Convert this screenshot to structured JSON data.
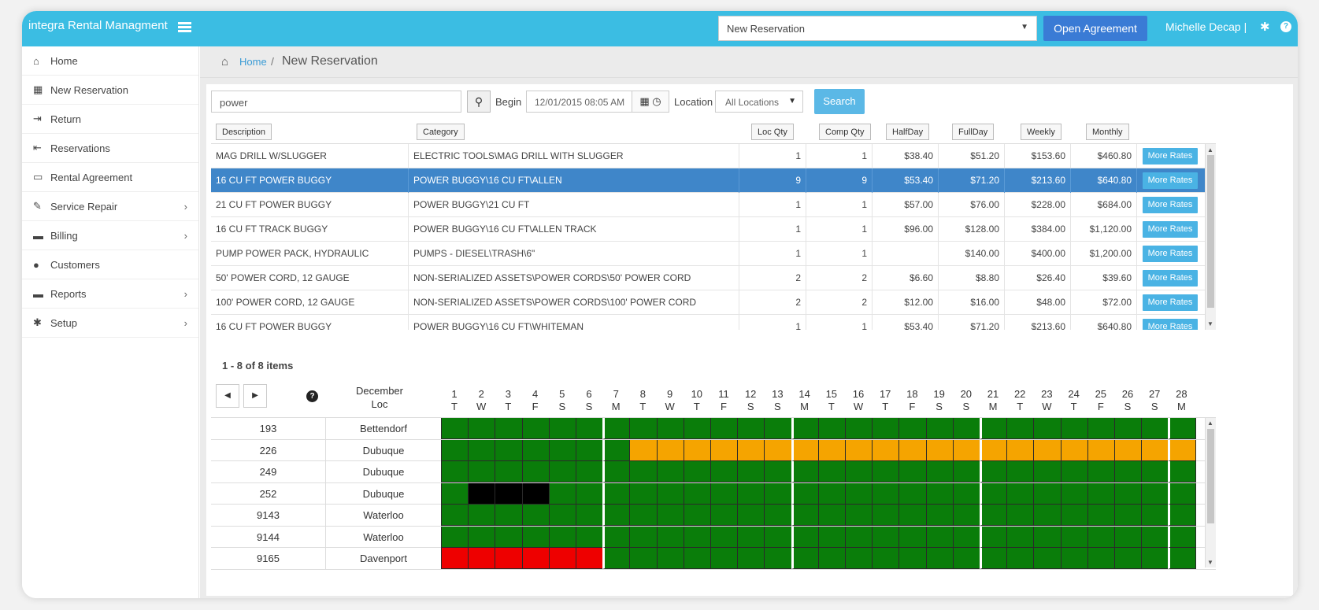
{
  "app": {
    "title": "integra Rental Managment",
    "reservation_select": "New Reservation",
    "open_agreement_label": "Open Agreement",
    "user_name": "Michelle Decap |"
  },
  "sidebar": {
    "items": [
      {
        "label": "Home",
        "icon": "home-icon",
        "has_submenu": false
      },
      {
        "label": "New Reservation",
        "icon": "calendar-icon",
        "has_submenu": false
      },
      {
        "label": "Return",
        "icon": "sign-in-icon",
        "has_submenu": false
      },
      {
        "label": "Reservations",
        "icon": "sign-out-icon",
        "has_submenu": false
      },
      {
        "label": "Rental Agreement",
        "icon": "folder-open-icon",
        "has_submenu": false
      },
      {
        "label": "Service Repair",
        "icon": "wrench-icon",
        "has_submenu": true
      },
      {
        "label": "Billing",
        "icon": "credit-card-icon",
        "has_submenu": true
      },
      {
        "label": "Customers",
        "icon": "user-icon",
        "has_submenu": false
      },
      {
        "label": "Reports",
        "icon": "credit-card-icon",
        "has_submenu": true
      },
      {
        "label": "Setup",
        "icon": "gear-icon",
        "has_submenu": true
      }
    ]
  },
  "breadcrumb": {
    "home": "Home",
    "separator": "/",
    "current": "New Reservation"
  },
  "search": {
    "query": "power",
    "begin_label": "Begin",
    "begin_value": "12/01/2015 08:05 AM",
    "location_label": "Location",
    "location_value": "All Locations",
    "search_label": "Search"
  },
  "equipment": {
    "columns": [
      "Description",
      "Category",
      "Loc Qty",
      "Comp Qty",
      "HalfDay",
      "FullDay",
      "Weekly",
      "Monthly"
    ],
    "more_rates_label": "More Rates",
    "selected_index": 1,
    "rows": [
      {
        "description": "MAG DRILL W/SLUGGER",
        "category": "ELECTRIC TOOLS\\MAG DRILL WITH SLUGGER",
        "loc_qty": "1",
        "comp_qty": "1",
        "halfday": "$38.40",
        "fullday": "$51.20",
        "weekly": "$153.60",
        "monthly": "$460.80"
      },
      {
        "description": "16 CU FT POWER BUGGY",
        "category": "POWER BUGGY\\16 CU FT\\ALLEN",
        "loc_qty": "9",
        "comp_qty": "9",
        "halfday": "$53.40",
        "fullday": "$71.20",
        "weekly": "$213.60",
        "monthly": "$640.80"
      },
      {
        "description": "21 CU FT POWER BUGGY",
        "category": "POWER BUGGY\\21 CU FT",
        "loc_qty": "1",
        "comp_qty": "1",
        "halfday": "$57.00",
        "fullday": "$76.00",
        "weekly": "$228.00",
        "monthly": "$684.00"
      },
      {
        "description": "16 CU FT TRACK BUGGY",
        "category": "POWER BUGGY\\16 CU FT\\ALLEN TRACK",
        "loc_qty": "1",
        "comp_qty": "1",
        "halfday": "$96.00",
        "fullday": "$128.00",
        "weekly": "$384.00",
        "monthly": "$1,120.00"
      },
      {
        "description": "PUMP POWER PACK, HYDRAULIC",
        "category": "PUMPS - DIESEL\\TRASH\\6\"",
        "loc_qty": "1",
        "comp_qty": "1",
        "halfday": "",
        "fullday": "$140.00",
        "weekly": "$400.00",
        "monthly": "$1,200.00"
      },
      {
        "description": "50' POWER CORD, 12 GAUGE",
        "category": "NON-SERIALIZED ASSETS\\POWER CORDS\\50' POWER CORD",
        "loc_qty": "2",
        "comp_qty": "2",
        "halfday": "$6.60",
        "fullday": "$8.80",
        "weekly": "$26.40",
        "monthly": "$39.60"
      },
      {
        "description": "100' POWER CORD, 12 GAUGE",
        "category": "NON-SERIALIZED ASSETS\\POWER CORDS\\100' POWER CORD",
        "loc_qty": "2",
        "comp_qty": "2",
        "halfday": "$12.00",
        "fullday": "$16.00",
        "weekly": "$48.00",
        "monthly": "$72.00"
      },
      {
        "description": "16 CU FT POWER BUGGY",
        "category": "POWER BUGGY\\16 CU FT\\WHITEMAN",
        "loc_qty": "1",
        "comp_qty": "1",
        "halfday": "$53.40",
        "fullday": "$71.20",
        "weekly": "$213.60",
        "monthly": "$640.80"
      }
    ],
    "items_count": "1 - 8 of 8 items"
  },
  "calendar": {
    "month": "December",
    "loc_header": "Loc",
    "days": [
      {
        "d": "1",
        "w": "T"
      },
      {
        "d": "2",
        "w": "W"
      },
      {
        "d": "3",
        "w": "T"
      },
      {
        "d": "4",
        "w": "F"
      },
      {
        "d": "5",
        "w": "S"
      },
      {
        "d": "6",
        "w": "S"
      },
      {
        "d": "7",
        "w": "M"
      },
      {
        "d": "8",
        "w": "T"
      },
      {
        "d": "9",
        "w": "W"
      },
      {
        "d": "10",
        "w": "T"
      },
      {
        "d": "11",
        "w": "F"
      },
      {
        "d": "12",
        "w": "S"
      },
      {
        "d": "13",
        "w": "S"
      },
      {
        "d": "14",
        "w": "M"
      },
      {
        "d": "15",
        "w": "T"
      },
      {
        "d": "16",
        "w": "W"
      },
      {
        "d": "17",
        "w": "T"
      },
      {
        "d": "18",
        "w": "F"
      },
      {
        "d": "19",
        "w": "S"
      },
      {
        "d": "20",
        "w": "S"
      },
      {
        "d": "21",
        "w": "M"
      },
      {
        "d": "22",
        "w": "T"
      },
      {
        "d": "23",
        "w": "W"
      },
      {
        "d": "24",
        "w": "T"
      },
      {
        "d": "25",
        "w": "F"
      },
      {
        "d": "26",
        "w": "S"
      },
      {
        "d": "27",
        "w": "S"
      },
      {
        "d": "28",
        "w": "M"
      }
    ],
    "status_colors": {
      "available": "#0a7d0a",
      "reserved": "#f5a400",
      "out": "#000000",
      "unavailable": "#ee0000"
    },
    "rows": [
      {
        "unit": "193",
        "loc": "Bettendorf",
        "status": "gggggggggggggggggggggggggggg"
      },
      {
        "unit": "226",
        "loc": "Dubuque",
        "status": "gggggggooooooooooooooooooooo"
      },
      {
        "unit": "249",
        "loc": "Dubuque",
        "status": "gggggggggggggggggggggggggggg"
      },
      {
        "unit": "252",
        "loc": "Dubuque",
        "status": "gkkkgggggggggggggggggggggggg"
      },
      {
        "unit": "9143",
        "loc": "Waterloo",
        "status": "gggggggggggggggggggggggggggg"
      },
      {
        "unit": "9144",
        "loc": "Waterloo",
        "status": "gggggggggggggggggggggggggggg"
      },
      {
        "unit": "9165",
        "loc": "Davenport",
        "status": "rrrrrrgggggggggggggggggggggg"
      }
    ]
  }
}
